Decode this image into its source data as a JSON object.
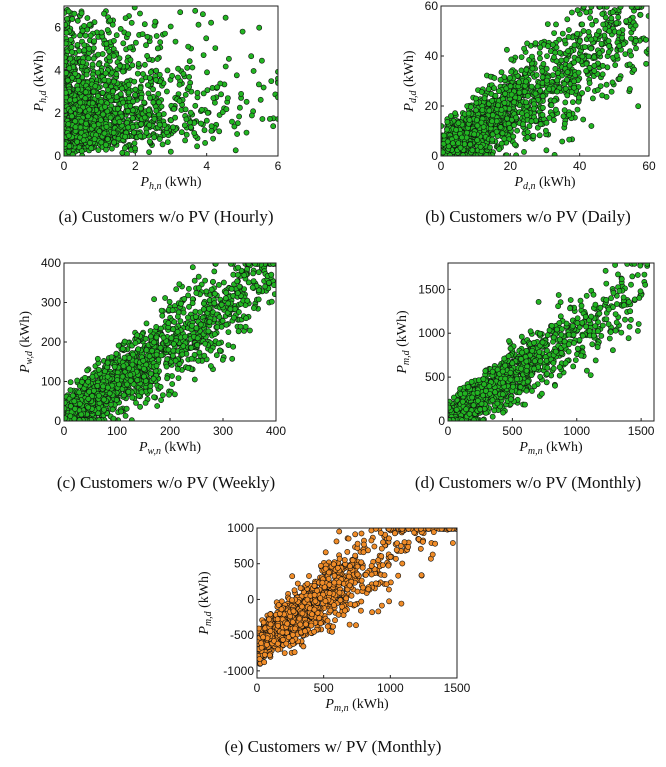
{
  "chart_data": [
    {
      "id": "a",
      "type": "scatter",
      "caption": "(a) Customers w/o PV (Hourly)",
      "xlabel": {
        "sym": "P",
        "sub": "h,n",
        "unit": "(kWh)"
      },
      "ylabel": {
        "sym": "P",
        "sub": "h,d",
        "unit": "(kWh)"
      },
      "xlim": [
        0,
        6
      ],
      "ylim": [
        0,
        7
      ],
      "xticks": [
        0,
        2,
        4,
        6
      ],
      "yticks": [
        0,
        2,
        4,
        6
      ],
      "marker_color": "#22b522",
      "points_description_only": false,
      "cloud": {
        "kind": "hourly",
        "n": 1500,
        "seed": 11
      }
    },
    {
      "id": "b",
      "type": "scatter",
      "caption": "(b) Customers w/o PV (Daily)",
      "xlabel": {
        "sym": "P",
        "sub": "d,n",
        "unit": "(kWh)"
      },
      "ylabel": {
        "sym": "P",
        "sub": "d,d",
        "unit": "(kWh)"
      },
      "xlim": [
        0,
        60
      ],
      "ylim": [
        0,
        60
      ],
      "xticks": [
        0,
        20,
        40,
        60
      ],
      "yticks": [
        0,
        20,
        40,
        60
      ],
      "marker_color": "#22b522",
      "cloud": {
        "kind": "linear",
        "n": 1700,
        "seed": 23,
        "slope": 0.85,
        "intercept": 2,
        "spread": 7,
        "xmax": 60,
        "xmean": 20
      }
    },
    {
      "id": "c",
      "type": "scatter",
      "caption": "(c) Customers w/o PV (Weekly)",
      "xlabel": {
        "sym": "P",
        "sub": "w,n",
        "unit": "(kWh)"
      },
      "ylabel": {
        "sym": "P",
        "sub": "w,d",
        "unit": "(kWh)"
      },
      "xlim": [
        0,
        400
      ],
      "ylim": [
        0,
        400
      ],
      "xticks": [
        0,
        100,
        200,
        300,
        400
      ],
      "yticks": [
        0,
        100,
        200,
        300,
        400
      ],
      "marker_color": "#22b522",
      "cloud": {
        "kind": "linear",
        "n": 1800,
        "seed": 37,
        "slope": 0.95,
        "intercept": 5,
        "spread": 40,
        "xmax": 400,
        "xmean": 140
      }
    },
    {
      "id": "d",
      "type": "scatter",
      "caption": "(d) Customers w/o PV (Monthly)",
      "xlabel": {
        "sym": "P",
        "sub": "m,n",
        "unit": "(kWh)"
      },
      "ylabel": {
        "sym": "P",
        "sub": "m,d",
        "unit": "(kWh)"
      },
      "xlim": [
        0,
        1600
      ],
      "ylim": [
        0,
        1800
      ],
      "xticks": [
        0,
        500,
        1000,
        1500
      ],
      "yticks": [
        0,
        500,
        1000,
        1500
      ],
      "marker_color": "#22b522",
      "cloud": {
        "kind": "linear",
        "n": 1500,
        "seed": 53,
        "slope": 1.0,
        "intercept": 20,
        "spread": 140,
        "xmax": 1550,
        "xmean": 480
      }
    },
    {
      "id": "e",
      "type": "scatter",
      "caption": "(e) Customers w/ PV (Monthly)",
      "xlabel": {
        "sym": "P",
        "sub": "m,n",
        "unit": "(kWh)"
      },
      "ylabel": {
        "sym": "P",
        "sub": "m,d",
        "unit": "(kWh)"
      },
      "xlim": [
        0,
        1500
      ],
      "ylim": [
        -1100,
        1000
      ],
      "xticks": [
        0,
        500,
        1000,
        1500
      ],
      "yticks": [
        -1000,
        -500,
        0,
        500,
        1000
      ],
      "marker_color": "#f08c28",
      "cloud": {
        "kind": "linear",
        "n": 1500,
        "seed": 71,
        "slope": 1.35,
        "intercept": -650,
        "spread": 190,
        "xmax": 1500,
        "xmean": 380
      }
    }
  ]
}
